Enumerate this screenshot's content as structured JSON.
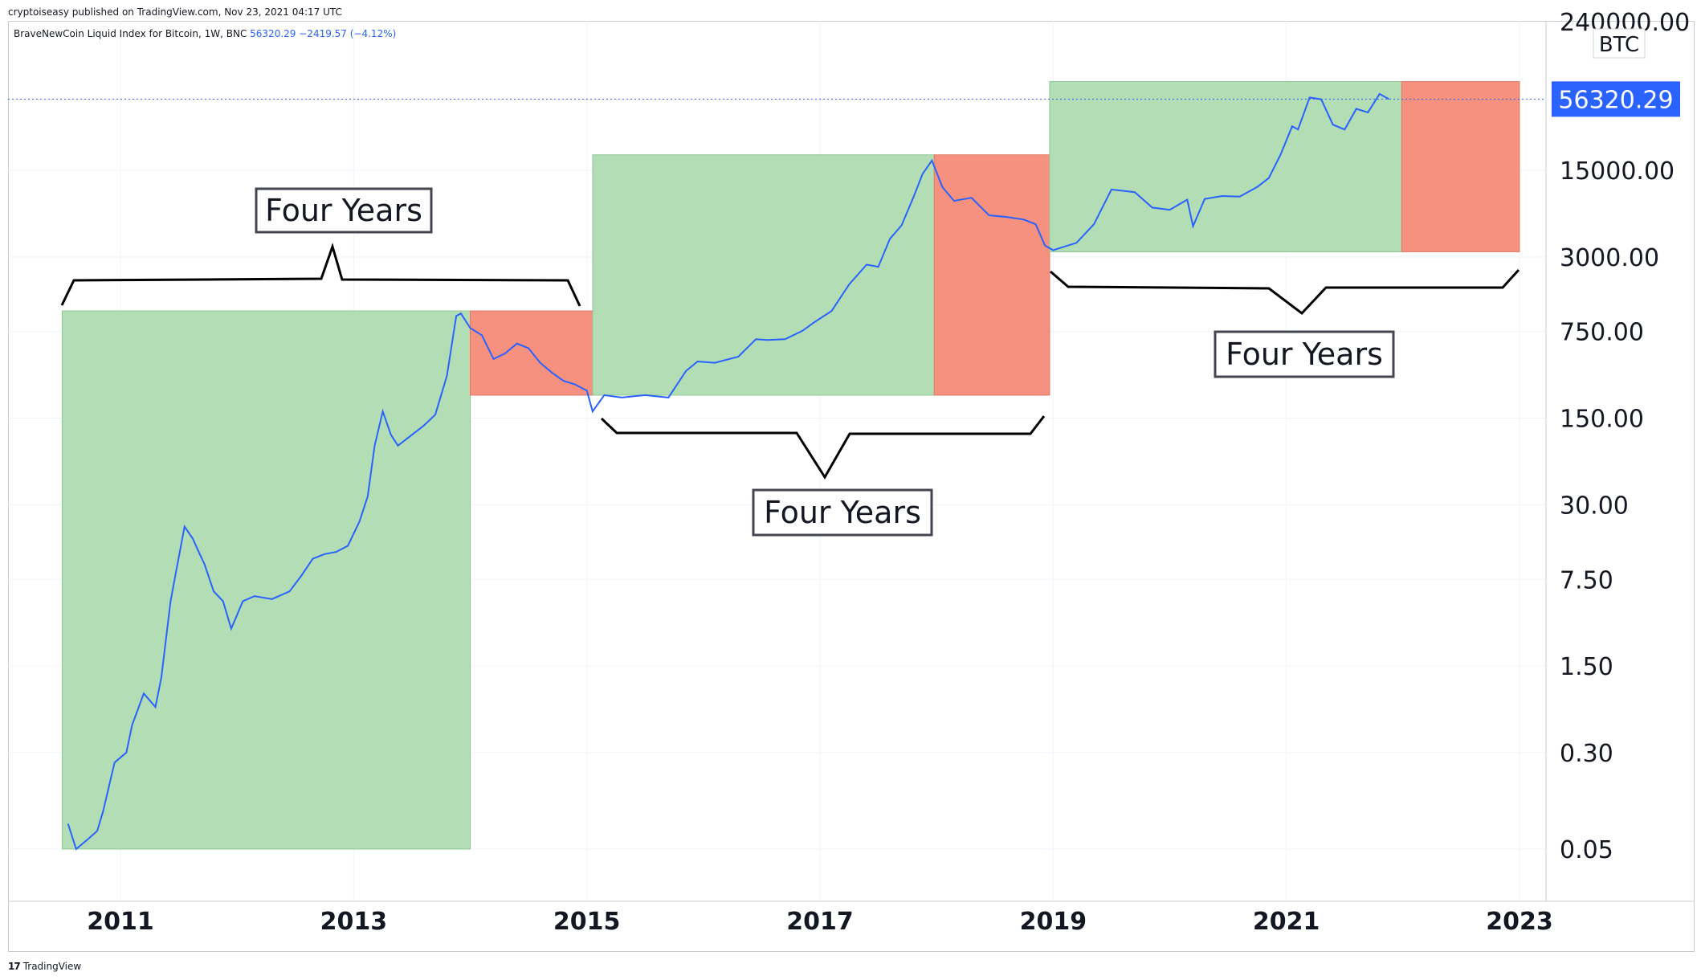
{
  "header": {
    "published_text": "cryptoiseasy published on TradingView.com, Nov 23, 2021 04:17 UTC"
  },
  "legend": {
    "symbol_text": "BraveNewCoin Liquid Index for Bitcoin, 1W, BNC",
    "last_value": "56320.29",
    "change": "−2419.57 (−4.12%)"
  },
  "price_axis": {
    "currency_label": "BTC",
    "top_label": "240000.00",
    "last_price_label": "56320.29",
    "last_price_color": "#2962ff"
  },
  "footer": {
    "brand_icon": "tradingview-logo-icon",
    "brand_text": "TradingView"
  },
  "colors": {
    "price_line": "#2962ff",
    "green_zone": "#b2ddb5",
    "red_zone": "#f6917f",
    "bracket": "#000000"
  },
  "chart_data": {
    "type": "line",
    "scale": "log",
    "grid": true,
    "xlim": [
      2010.0,
      2023.2
    ],
    "ylim": [
      0.011,
      300000
    ],
    "x_ticks": [
      "2011",
      "2013",
      "2015",
      "2017",
      "2019",
      "2021",
      "2023"
    ],
    "y_ticks": [
      "15000.00",
      "3000.00",
      "750.00",
      "150.00",
      "30.00",
      "7.50",
      "1.50",
      "0.30",
      "0.05"
    ],
    "series": [
      {
        "name": "BraveNewCoin Liquid Index for Bitcoin",
        "x": [
          2010.55,
          2010.62,
          2010.72,
          2010.8,
          2010.85,
          2010.95,
          2011.05,
          2011.1,
          2011.2,
          2011.3,
          2011.35,
          2011.43,
          2011.47,
          2011.55,
          2011.62,
          2011.68,
          2011.72,
          2011.8,
          2011.88,
          2011.95,
          2012.05,
          2012.15,
          2012.3,
          2012.45,
          2012.55,
          2012.65,
          2012.75,
          2012.85,
          2012.95,
          2013.05,
          2013.12,
          2013.18,
          2013.25,
          2013.32,
          2013.38,
          2013.5,
          2013.6,
          2013.7,
          2013.8,
          2013.88,
          2013.92,
          2014.0,
          2014.1,
          2014.2,
          2014.3,
          2014.4,
          2014.5,
          2014.6,
          2014.7,
          2014.8,
          2014.9,
          2015.0,
          2015.05,
          2015.15,
          2015.3,
          2015.5,
          2015.7,
          2015.85,
          2015.95,
          2016.1,
          2016.3,
          2016.45,
          2016.55,
          2016.7,
          2016.85,
          2016.95,
          2017.1,
          2017.25,
          2017.4,
          2017.5,
          2017.6,
          2017.7,
          2017.8,
          2017.88,
          2017.96,
          2018.05,
          2018.15,
          2018.3,
          2018.45,
          2018.6,
          2018.75,
          2018.85,
          2018.93,
          2019.0,
          2019.2,
          2019.35,
          2019.5,
          2019.7,
          2019.85,
          2020.0,
          2020.15,
          2020.2,
          2020.3,
          2020.45,
          2020.6,
          2020.75,
          2020.85,
          2020.95,
          2021.05,
          2021.1,
          2021.2,
          2021.3,
          2021.4,
          2021.5,
          2021.6,
          2021.7,
          2021.8,
          2021.88
        ],
        "y": [
          0.08,
          0.05,
          0.06,
          0.07,
          0.1,
          0.25,
          0.3,
          0.5,
          0.9,
          0.7,
          1.2,
          5,
          8,
          20,
          16,
          12,
          10,
          6,
          5,
          3,
          5,
          5.5,
          5.2,
          6,
          8,
          11,
          12,
          12.5,
          14,
          22,
          35,
          90,
          170,
          110,
          90,
          110,
          130,
          160,
          330,
          1000,
          1050,
          800,
          700,
          450,
          500,
          600,
          550,
          420,
          350,
          300,
          280,
          250,
          170,
          230,
          220,
          230,
          220,
          360,
          430,
          420,
          470,
          650,
          640,
          650,
          760,
          890,
          1100,
          1800,
          2600,
          2500,
          4200,
          5400,
          9000,
          14000,
          18000,
          11000,
          8500,
          9000,
          6500,
          6300,
          6000,
          5500,
          3700,
          3400,
          3900,
          5500,
          10500,
          10000,
          7500,
          7200,
          8700,
          5300,
          8800,
          9300,
          9200,
          11000,
          13000,
          20000,
          34000,
          32000,
          58000,
          56000,
          35000,
          32000,
          47000,
          44000,
          62000,
          56320
        ]
      }
    ],
    "zones": [
      {
        "color": "green",
        "x0": 2010.5,
        "x1": 2014.0,
        "y0": 0.05,
        "y1": 1100
      },
      {
        "color": "red",
        "x0": 2014.0,
        "x1": 2015.05,
        "y0": 230,
        "y1": 1100
      },
      {
        "color": "green",
        "x0": 2015.05,
        "x1": 2017.98,
        "y0": 230,
        "y1": 20000
      },
      {
        "color": "red",
        "x0": 2017.98,
        "x1": 2018.97,
        "y0": 230,
        "y1": 20000
      },
      {
        "color": "green",
        "x0": 2018.97,
        "x1": 2021.99,
        "y0": 3300,
        "y1": 78000
      },
      {
        "color": "red",
        "x0": 2021.99,
        "x1": 2023.0,
        "y0": 3300,
        "y1": 78000
      }
    ],
    "annotations": [
      {
        "text": "Four Years",
        "x_center": 2012.3,
        "position": "above"
      },
      {
        "text": "Four Years",
        "x_center": 2017.15,
        "position": "below"
      },
      {
        "text": "Four Years",
        "x_center": 2021.05,
        "position": "below"
      }
    ],
    "last_value": 56320.29
  }
}
